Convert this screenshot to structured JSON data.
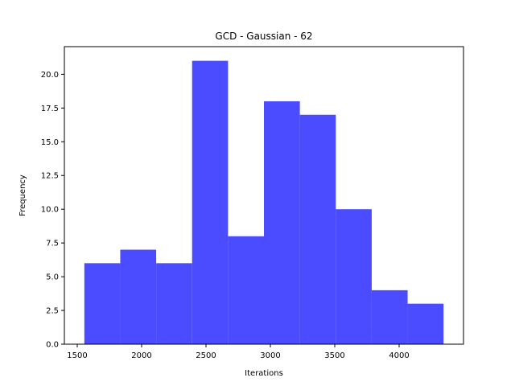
{
  "chart_data": {
    "type": "bar",
    "subtype": "histogram",
    "title": "GCD - Gaussian - 62",
    "xlabel": "Iterations",
    "ylabel": "Frequency",
    "bar_color": "#4b4bff",
    "bin_edges": [
      1555,
      1834,
      2113,
      2392,
      2671,
      2950,
      3229,
      3508,
      3787,
      4066,
      4345
    ],
    "values": [
      6,
      7,
      6,
      21,
      8,
      18,
      17,
      10,
      4,
      3
    ],
    "xlim": [
      1400,
      4500
    ],
    "ylim": [
      0,
      22.05
    ],
    "xticks": [
      1500,
      2000,
      2500,
      3000,
      3500,
      4000
    ],
    "yticks": [
      0.0,
      2.5,
      5.0,
      7.5,
      10.0,
      12.5,
      15.0,
      17.5,
      20.0
    ],
    "xtick_labels": [
      "1500",
      "2000",
      "2500",
      "3000",
      "3500",
      "4000"
    ],
    "ytick_labels": [
      "0.0",
      "2.5",
      "5.0",
      "7.5",
      "10.0",
      "12.5",
      "15.0",
      "17.5",
      "20.0"
    ],
    "grid": false
  }
}
